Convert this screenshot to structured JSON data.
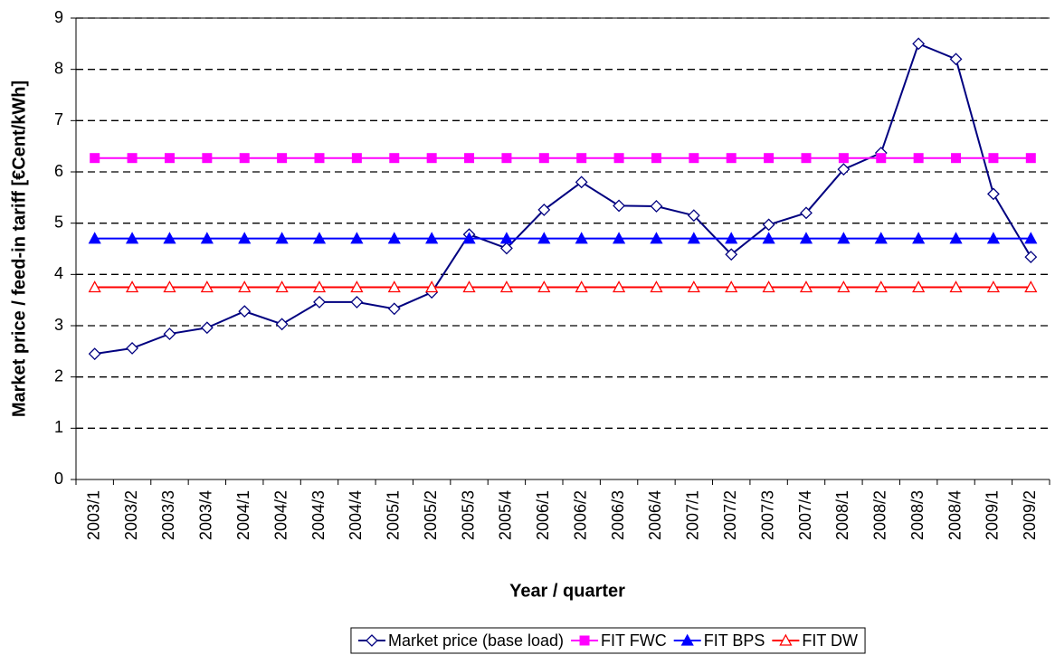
{
  "chart_data": {
    "type": "line",
    "x_label": "Year / quarter",
    "y_label": "Market price / feed-in tariff [€Cent/kWh]",
    "categories": [
      "2003/1",
      "2003/2",
      "2003/3",
      "2003/4",
      "2004/1",
      "2004/2",
      "2004/3",
      "2004/4",
      "2005/1",
      "2005/2",
      "2005/3",
      "2005/4",
      "2006/1",
      "2006/2",
      "2006/3",
      "2006/4",
      "2007/1",
      "2007/2",
      "2007/3",
      "2007/4",
      "2008/1",
      "2008/2",
      "2008/3",
      "2008/4",
      "2009/1",
      "2009/2"
    ],
    "series": [
      {
        "name": "Market price (base load)",
        "color": "#000080",
        "marker": "diamond",
        "filled": false,
        "values": [
          2.45,
          2.56,
          2.84,
          2.96,
          3.28,
          3.03,
          3.46,
          3.46,
          3.33,
          3.65,
          4.78,
          4.51,
          5.26,
          5.8,
          5.34,
          5.33,
          5.15,
          4.39,
          4.97,
          5.2,
          6.05,
          6.37,
          8.5,
          8.2,
          5.57,
          4.34
        ]
      },
      {
        "name": "FIT FWC",
        "color": "#ff00ff",
        "marker": "square",
        "filled": true,
        "values": [
          6.27,
          6.27,
          6.27,
          6.27,
          6.27,
          6.27,
          6.27,
          6.27,
          6.27,
          6.27,
          6.27,
          6.27,
          6.27,
          6.27,
          6.27,
          6.27,
          6.27,
          6.27,
          6.27,
          6.27,
          6.27,
          6.27,
          6.27,
          6.27,
          6.27,
          6.27
        ]
      },
      {
        "name": "FIT BPS",
        "color": "#0000ff",
        "marker": "triangle",
        "filled": true,
        "values": [
          4.7,
          4.7,
          4.7,
          4.7,
          4.7,
          4.7,
          4.7,
          4.7,
          4.7,
          4.7,
          4.7,
          4.7,
          4.7,
          4.7,
          4.7,
          4.7,
          4.7,
          4.7,
          4.7,
          4.7,
          4.7,
          4.7,
          4.7,
          4.7,
          4.7,
          4.7
        ]
      },
      {
        "name": "FIT DW",
        "color": "#ff0000",
        "marker": "triangle",
        "filled": false,
        "values": [
          3.75,
          3.75,
          3.75,
          3.75,
          3.75,
          3.75,
          3.75,
          3.75,
          3.75,
          3.75,
          3.75,
          3.75,
          3.75,
          3.75,
          3.75,
          3.75,
          3.75,
          3.75,
          3.75,
          3.75,
          3.75,
          3.75,
          3.75,
          3.75,
          3.75,
          3.75
        ]
      }
    ],
    "ylim": [
      0,
      9
    ],
    "yticks": [
      0,
      1,
      2,
      3,
      4,
      5,
      6,
      7,
      8,
      9
    ],
    "grid": true,
    "legend": "bottom"
  }
}
